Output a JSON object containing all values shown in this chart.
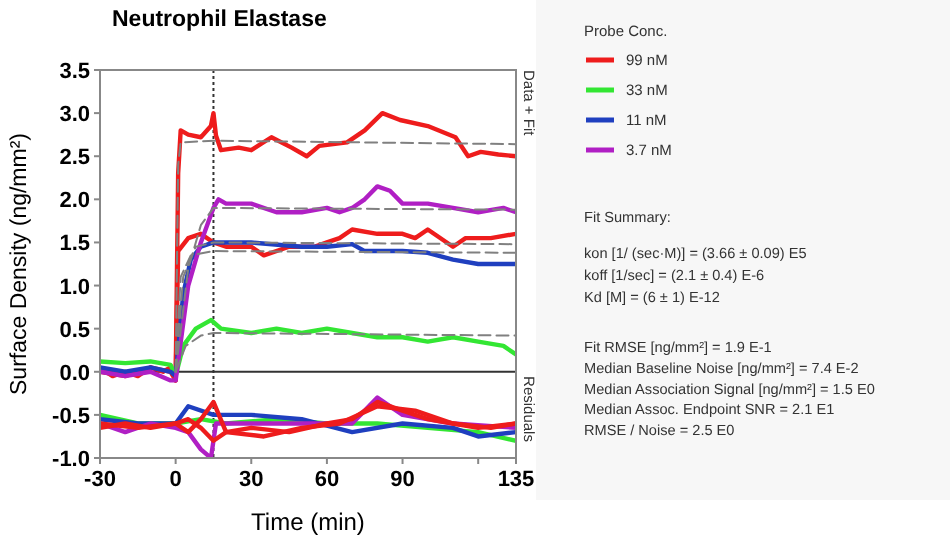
{
  "chart_data": {
    "type": "line",
    "title": "Neutrophil Elastase",
    "xlabel": "Time (min)",
    "ylabel": "Surface Density (ng/mm²)",
    "legend_title": "Probe Conc.",
    "legend": "right",
    "grid": false,
    "marker": "none",
    "line_style": "solid",
    "xlim": [
      -30,
      135
    ],
    "xticks": [
      -30,
      0,
      30,
      60,
      90,
      {
        "value": 120,
        "label": null
      },
      135
    ],
    "ylim": [
      -1,
      3.5
    ],
    "yticks": [
      3.5,
      {
        "value": 3,
        "label": "3.0"
      },
      2.5,
      {
        "value": 2,
        "label": "2.0"
      },
      1.5,
      {
        "value": 1,
        "label": "1.0"
      },
      0.5,
      {
        "value": 0,
        "label": "0.0"
      },
      -0.5,
      {
        "value": -1,
        "label": "-1.0"
      }
    ],
    "ref_lines": [
      {
        "axis": "x",
        "value": 15,
        "label": null,
        "color": "#333333",
        "line_style": "dotted"
      },
      {
        "axis": "y",
        "value": 0,
        "label": null,
        "color": "#333333",
        "line_style": "solid"
      }
    ],
    "annotations": [
      "Data + Fit",
      "Residuals",
      "Fit Summary:",
      "kon  [1/ (sec·M)]  =   (3.66 ± 0.09) E5",
      "koff  [1/sec]  =   (2.1 ± 0.4) E-6",
      "Kd  [M]  =   (6 ± 1) E-12",
      "Fit RMSE [ng/mm²]  =   1.9 E-1",
      "Median Baseline Noise [ng/mm²]  =   7.4 E-2",
      "Median Association Signal [ng/mm²]  =   1.5 E0",
      "Median Assoc. Endpoint SNR  =   2.1 E1",
      "RMSE / Noise  =   2.5 E0"
    ],
    "series": [
      {
        "line_style": "dashed",
        "color": "#808080",
        "x": [
          0,
          1,
          2,
          15,
          135
        ],
        "values": [
          0,
          2.4,
          2.66,
          2.68,
          2.64
        ]
      },
      {
        "line_style": "dashed",
        "color": "#808080",
        "x": [
          0,
          5,
          10,
          15,
          135
        ],
        "values": [
          0,
          1.2,
          1.7,
          1.9,
          1.88
        ]
      },
      {
        "line_style": "dashed",
        "color": "#808080",
        "x": [
          0,
          3,
          8,
          15,
          135
        ],
        "values": [
          0,
          1.1,
          1.45,
          1.5,
          1.48
        ]
      },
      {
        "line_style": "dashed",
        "color": "#808080",
        "x": [
          0,
          2,
          6,
          15,
          135
        ],
        "values": [
          0,
          1.1,
          1.35,
          1.4,
          1.38
        ]
      },
      {
        "line_style": "dashed",
        "color": "#808080",
        "x": [
          0,
          4,
          10,
          15,
          135
        ],
        "values": [
          0,
          0.3,
          0.42,
          0.45,
          0.42
        ]
      },
      {
        "name": "99 nM",
        "color": "#ee1c1c",
        "x": [
          -30,
          -25,
          -20,
          -15,
          -10,
          -5,
          -2,
          0,
          1,
          2,
          5,
          10,
          14,
          15,
          16,
          18,
          25,
          30,
          38,
          46,
          52,
          57,
          68,
          75,
          82,
          89,
          100,
          111,
          116,
          121,
          128,
          135
        ],
        "values": [
          0.05,
          -0.05,
          0,
          -0.05,
          0.05,
          0,
          0.05,
          -0.1,
          2.3,
          2.8,
          2.75,
          2.72,
          2.85,
          3.0,
          2.74,
          2.57,
          2.6,
          2.57,
          2.72,
          2.6,
          2.5,
          2.62,
          2.66,
          2.8,
          3.0,
          2.92,
          2.85,
          2.72,
          2.5,
          2.55,
          2.52,
          2.5
        ]
      },
      {
        "color": "#ee1c1c",
        "x": [
          -30,
          -20,
          -10,
          -2,
          0,
          1,
          5,
          10,
          15,
          20,
          30,
          35,
          45,
          55,
          60,
          65,
          70,
          80,
          90,
          95,
          100,
          110,
          115,
          125,
          135
        ],
        "values": [
          0,
          -0.05,
          0.05,
          0,
          -0.1,
          1.4,
          1.55,
          1.6,
          1.5,
          1.45,
          1.45,
          1.35,
          1.45,
          1.45,
          1.5,
          1.55,
          1.65,
          1.6,
          1.6,
          1.55,
          1.65,
          1.45,
          1.55,
          1.55,
          1.6
        ]
      },
      {
        "name": "33 nM",
        "color": "#33e633",
        "x": [
          -30,
          -20,
          -10,
          -2,
          0,
          3,
          8,
          14,
          18,
          30,
          40,
          50,
          60,
          70,
          80,
          90,
          100,
          110,
          120,
          130,
          135
        ],
        "values": [
          0.12,
          0.1,
          0.12,
          0.08,
          -0.05,
          0.3,
          0.5,
          0.6,
          0.5,
          0.45,
          0.5,
          0.45,
          0.5,
          0.45,
          0.4,
          0.4,
          0.35,
          0.4,
          0.35,
          0.3,
          0.2
        ]
      },
      {
        "name": "11 nM",
        "color": "#1f3fbf",
        "x": [
          -30,
          -20,
          -10,
          -2,
          0,
          3,
          6,
          10,
          15,
          30,
          50,
          60,
          70,
          75,
          90,
          100,
          110,
          120,
          135
        ],
        "values": [
          0.05,
          0,
          0.05,
          0,
          -0.05,
          0.9,
          1.3,
          1.45,
          1.5,
          1.5,
          1.45,
          1.45,
          1.48,
          1.4,
          1.4,
          1.38,
          1.3,
          1.25,
          1.25
        ]
      },
      {
        "name": "3.7 nM",
        "color": "#b01fc4",
        "x": [
          -30,
          -20,
          -10,
          -2,
          0,
          5,
          10,
          15,
          17,
          20,
          30,
          40,
          50,
          60,
          65,
          70,
          75,
          80,
          85,
          90,
          100,
          110,
          120,
          130,
          135
        ],
        "values": [
          0,
          -0.05,
          0,
          -0.1,
          -0.1,
          1.0,
          1.5,
          1.9,
          2.0,
          1.95,
          1.95,
          1.85,
          1.85,
          1.9,
          1.85,
          1.9,
          2.0,
          2.15,
          2.1,
          1.95,
          1.95,
          1.9,
          1.85,
          1.9,
          1.85
        ]
      },
      {
        "color": "#33e633",
        "x": [
          -30,
          -15,
          0,
          10,
          20,
          40,
          60,
          80,
          100,
          120,
          135
        ],
        "values": [
          -0.5,
          -0.6,
          -0.6,
          -0.55,
          -0.6,
          -0.55,
          -0.6,
          -0.6,
          -0.65,
          -0.7,
          -0.8
        ]
      },
      {
        "color": "#1f3fbf",
        "x": [
          -30,
          -15,
          0,
          5,
          15,
          30,
          50,
          70,
          90,
          110,
          120,
          135
        ],
        "values": [
          -0.55,
          -0.6,
          -0.6,
          -0.4,
          -0.5,
          -0.5,
          -0.55,
          -0.7,
          -0.6,
          -0.65,
          -0.75,
          -0.7
        ]
      },
      {
        "color": "#b01fc4",
        "x": [
          -30,
          -20,
          -10,
          0,
          5,
          10,
          14,
          16,
          30,
          50,
          70,
          80,
          90,
          110,
          135
        ],
        "values": [
          -0.6,
          -0.7,
          -0.6,
          -0.65,
          -0.7,
          -0.9,
          -1.0,
          -0.6,
          -0.6,
          -0.6,
          -0.6,
          -0.3,
          -0.5,
          -0.6,
          -0.65
        ]
      },
      {
        "color": "#ee1c1c",
        "x": [
          -30,
          -20,
          -10,
          0,
          5,
          10,
          15,
          20,
          30,
          45,
          60,
          70,
          80,
          90,
          100,
          110,
          120,
          135
        ],
        "values": [
          -0.65,
          -0.6,
          -0.65,
          -0.6,
          -0.7,
          -0.55,
          -0.35,
          -0.7,
          -0.65,
          -0.7,
          -0.6,
          -0.55,
          -0.35,
          -0.45,
          -0.55,
          -0.6,
          -0.65,
          -0.6
        ]
      },
      {
        "color": "#ee1c1c",
        "x": [
          -30,
          -15,
          0,
          5,
          10,
          15,
          20,
          35,
          50,
          65,
          80,
          95,
          110,
          125,
          135
        ],
        "values": [
          -0.6,
          -0.65,
          -0.6,
          -0.55,
          -0.65,
          -0.8,
          -0.7,
          -0.75,
          -0.65,
          -0.6,
          -0.4,
          -0.45,
          -0.6,
          -0.65,
          -0.6
        ]
      }
    ]
  }
}
